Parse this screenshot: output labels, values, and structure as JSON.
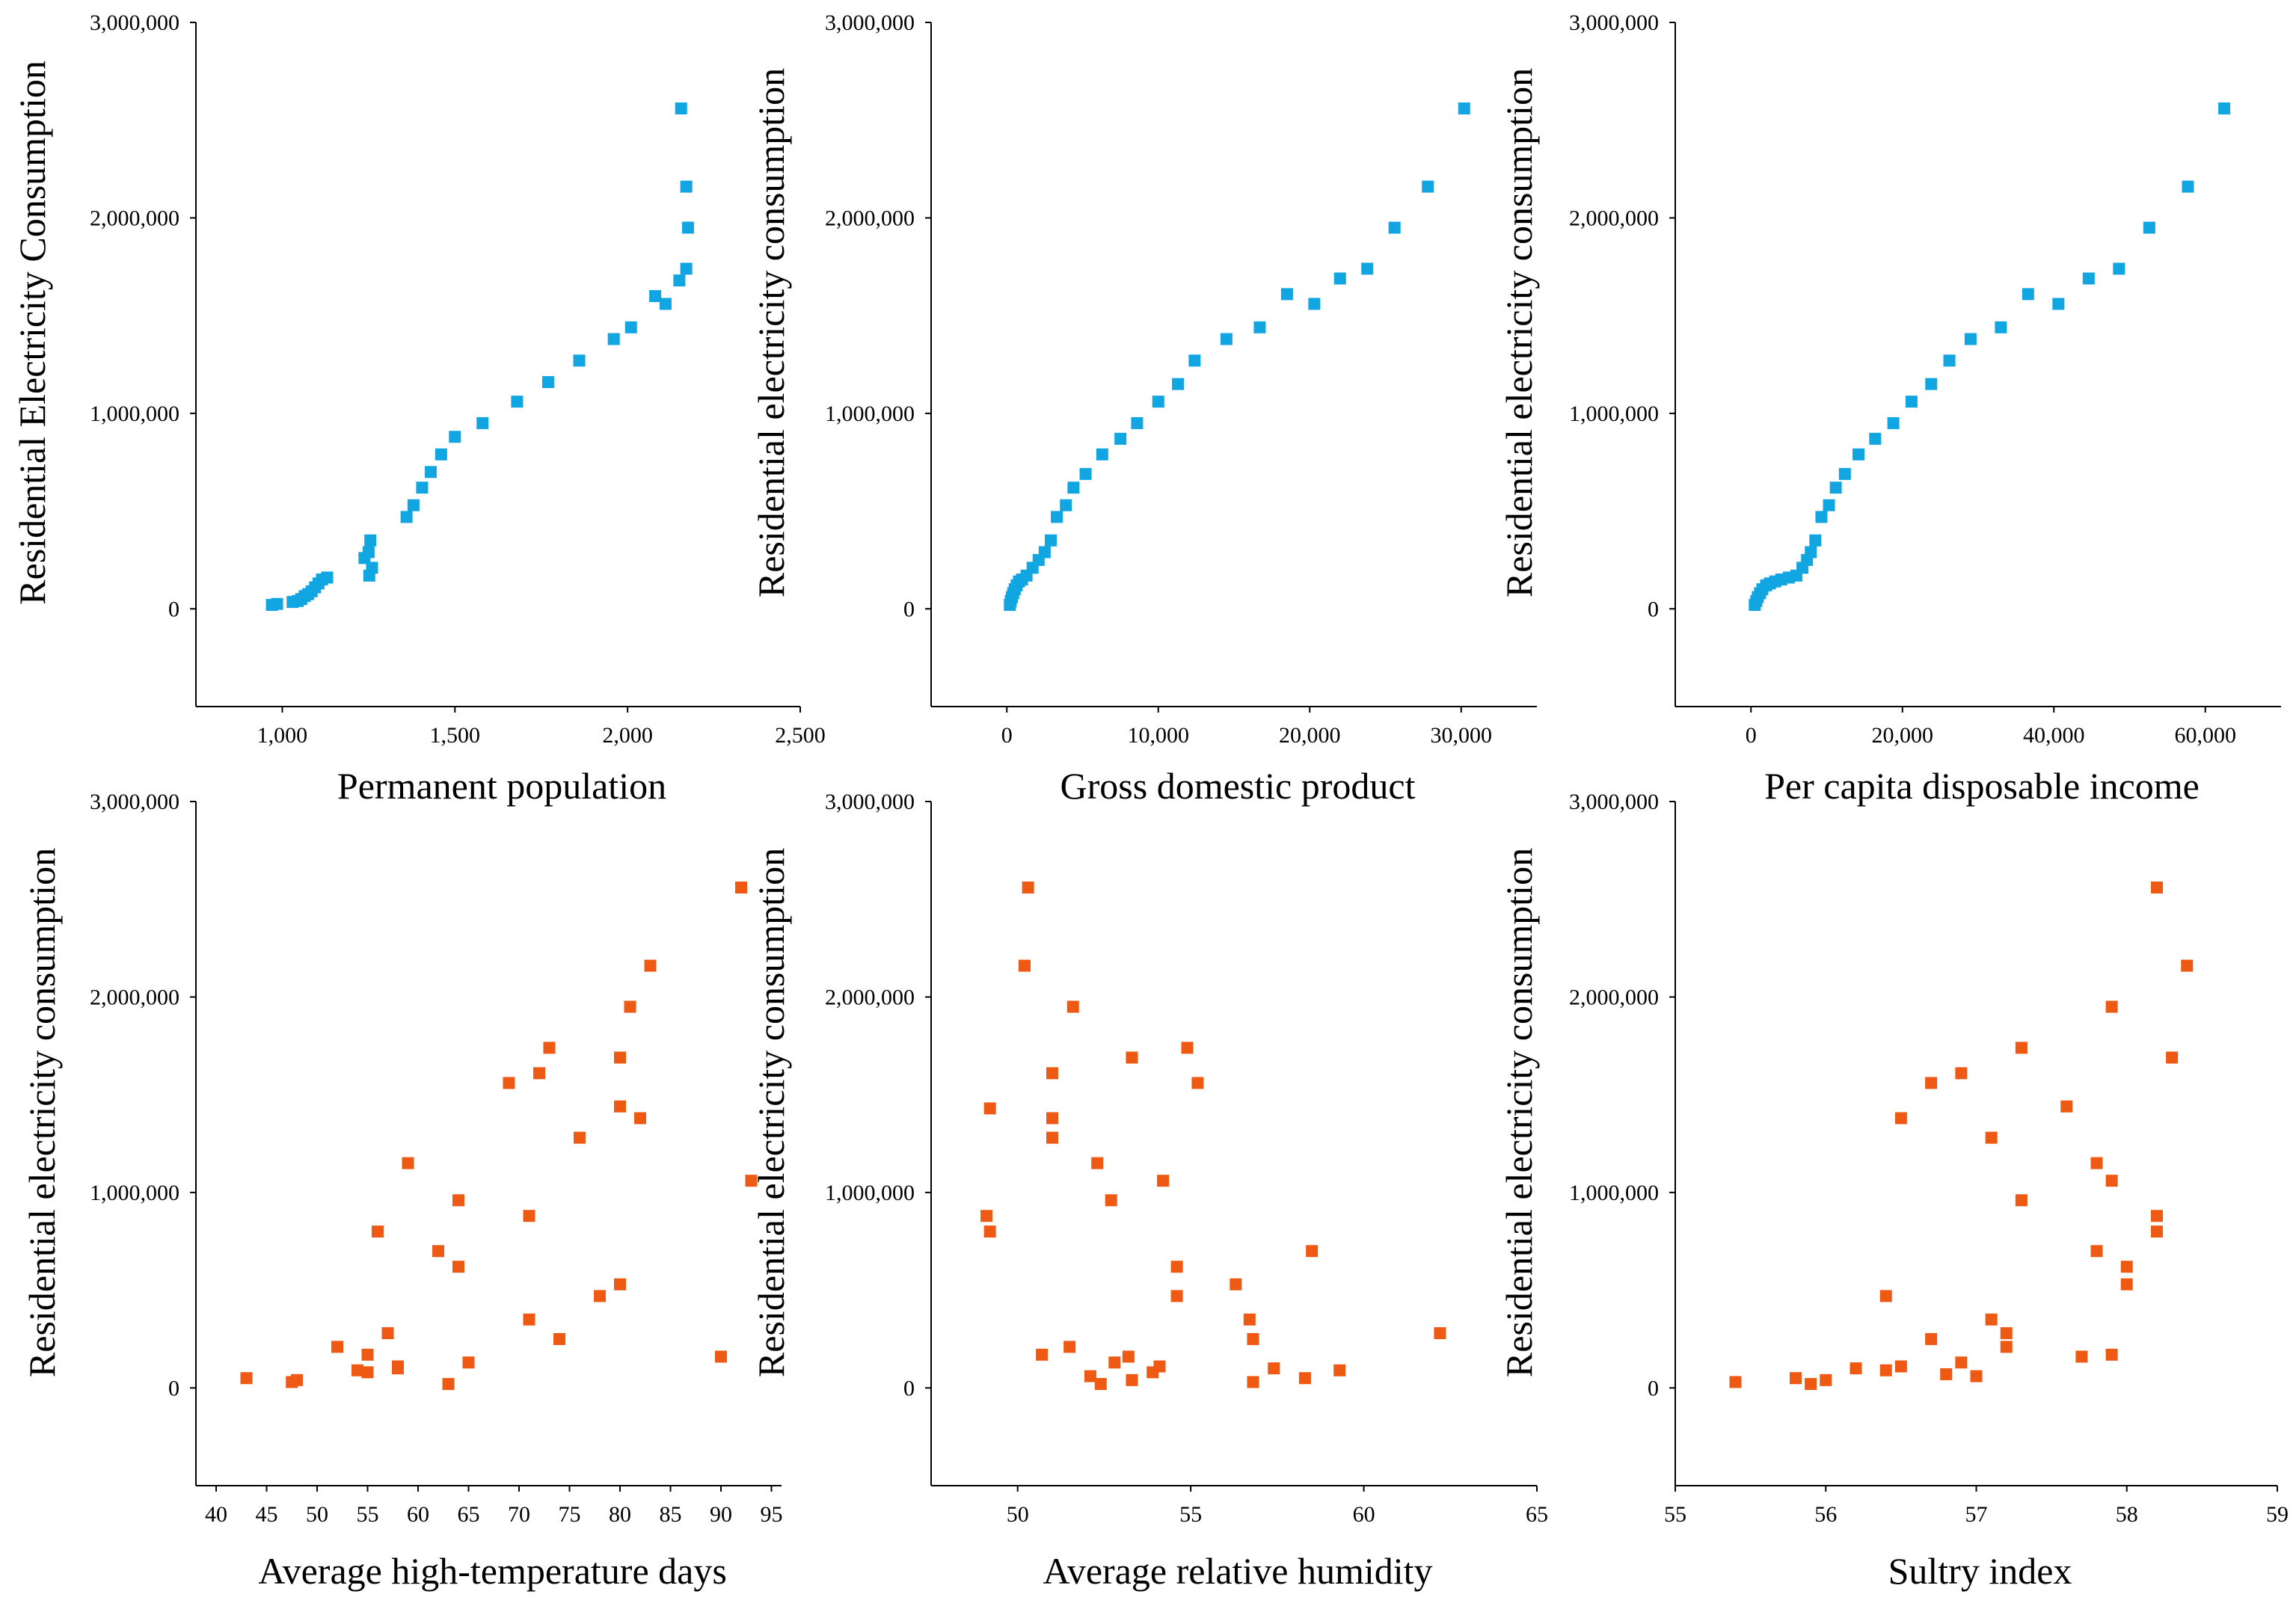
{
  "colors": {
    "blue": "#11A6E2",
    "orange": "#EE5A14",
    "axis": "#000000"
  },
  "chart_data": [
    {
      "type": "scatter",
      "id": "permanent-population",
      "color": "blue",
      "xlabel": "Permanent population",
      "ylabel": "Residential Electricity Consumption",
      "xlim": [
        750,
        2500
      ],
      "ylim": [
        -500000,
        3000000
      ],
      "xticks": [
        1000,
        1500,
        2000,
        2500
      ],
      "xtick_labels": [
        "1,000",
        "1,500",
        "2,000",
        "2,500"
      ],
      "yticks": [
        0,
        1000000,
        2000000,
        3000000
      ],
      "ytick_labels": [
        "0",
        "1,000,000",
        "2,000,000",
        "3,000,000"
      ],
      "points": [
        [
          970,
          20000
        ],
        [
          985,
          25000
        ],
        [
          1030,
          35000
        ],
        [
          1045,
          40000
        ],
        [
          1055,
          50000
        ],
        [
          1065,
          65000
        ],
        [
          1075,
          75000
        ],
        [
          1085,
          90000
        ],
        [
          1095,
          110000
        ],
        [
          1105,
          130000
        ],
        [
          1115,
          150000
        ],
        [
          1130,
          160000
        ],
        [
          1238,
          260000
        ],
        [
          1250,
          290000
        ],
        [
          1255,
          350000
        ],
        [
          1252,
          170000
        ],
        [
          1260,
          210000
        ],
        [
          1360,
          470000
        ],
        [
          1380,
          530000
        ],
        [
          1405,
          620000
        ],
        [
          1430,
          700000
        ],
        [
          1460,
          790000
        ],
        [
          1500,
          880000
        ],
        [
          1580,
          950000
        ],
        [
          1680,
          1060000
        ],
        [
          1770,
          1160000
        ],
        [
          1860,
          1270000
        ],
        [
          1960,
          1380000
        ],
        [
          2010,
          1440000
        ],
        [
          2080,
          1600000
        ],
        [
          2110,
          1560000
        ],
        [
          2150,
          1680000
        ],
        [
          2170,
          1740000
        ],
        [
          2175,
          1950000
        ],
        [
          2170,
          2160000
        ],
        [
          2155,
          2560000
        ]
      ]
    },
    {
      "type": "scatter",
      "id": "gross-domestic-product",
      "color": "blue",
      "xlabel": "Gross domestic product",
      "ylabel": "Residential electricity consumption",
      "xlim": [
        -5000,
        35000
      ],
      "ylim": [
        -500000,
        3000000
      ],
      "xticks": [
        0,
        10000,
        20000,
        30000
      ],
      "xtick_labels": [
        "0",
        "10,000",
        "20,000",
        "30,000"
      ],
      "yticks": [
        0,
        1000000,
        2000000,
        3000000
      ],
      "ytick_labels": [
        "0",
        "1,000,000",
        "2,000,000",
        "3,000,000"
      ],
      "points": [
        [
          200,
          20000
        ],
        [
          260,
          40000
        ],
        [
          330,
          60000
        ],
        [
          420,
          80000
        ],
        [
          520,
          100000
        ],
        [
          650,
          120000
        ],
        [
          800,
          140000
        ],
        [
          1000,
          150000
        ],
        [
          1300,
          170000
        ],
        [
          1700,
          210000
        ],
        [
          2100,
          250000
        ],
        [
          2500,
          290000
        ],
        [
          2900,
          350000
        ],
        [
          3300,
          470000
        ],
        [
          3900,
          530000
        ],
        [
          4400,
          620000
        ],
        [
          5200,
          690000
        ],
        [
          6300,
          790000
        ],
        [
          7500,
          870000
        ],
        [
          8600,
          950000
        ],
        [
          10000,
          1060000
        ],
        [
          11300,
          1150000
        ],
        [
          12400,
          1270000
        ],
        [
          14500,
          1380000
        ],
        [
          16700,
          1440000
        ],
        [
          18500,
          1610000
        ],
        [
          20300,
          1560000
        ],
        [
          22000,
          1690000
        ],
        [
          23800,
          1740000
        ],
        [
          25600,
          1950000
        ],
        [
          27800,
          2160000
        ],
        [
          30200,
          2560000
        ]
      ]
    },
    {
      "type": "scatter",
      "id": "per-capita-disposable-income",
      "color": "blue",
      "xlabel": "Per capita disposable income",
      "ylabel": "Residential electricity consumption",
      "xlim": [
        -10000,
        70000
      ],
      "ylim": [
        -500000,
        3000000
      ],
      "xticks": [
        0,
        20000,
        40000,
        60000
      ],
      "xtick_labels": [
        "0",
        "20,000",
        "40,000",
        "60,000"
      ],
      "yticks": [
        0,
        1000000,
        2000000,
        3000000
      ],
      "ytick_labels": [
        "0",
        "1,000,000",
        "2,000,000",
        "3,000,000"
      ],
      "points": [
        [
          500,
          20000
        ],
        [
          700,
          40000
        ],
        [
          900,
          60000
        ],
        [
          1200,
          80000
        ],
        [
          1500,
          100000
        ],
        [
          2000,
          120000
        ],
        [
          2500,
          130000
        ],
        [
          3200,
          140000
        ],
        [
          4000,
          150000
        ],
        [
          5000,
          160000
        ],
        [
          6000,
          170000
        ],
        [
          6800,
          210000
        ],
        [
          7400,
          250000
        ],
        [
          7900,
          290000
        ],
        [
          8500,
          350000
        ],
        [
          9300,
          470000
        ],
        [
          10300,
          530000
        ],
        [
          11200,
          620000
        ],
        [
          12400,
          690000
        ],
        [
          14200,
          790000
        ],
        [
          16400,
          870000
        ],
        [
          18800,
          950000
        ],
        [
          21200,
          1060000
        ],
        [
          23800,
          1150000
        ],
        [
          26200,
          1270000
        ],
        [
          29000,
          1380000
        ],
        [
          33000,
          1440000
        ],
        [
          36600,
          1610000
        ],
        [
          40600,
          1560000
        ],
        [
          44600,
          1690000
        ],
        [
          48600,
          1740000
        ],
        [
          52600,
          1950000
        ],
        [
          57700,
          2160000
        ],
        [
          62500,
          2560000
        ]
      ]
    },
    {
      "type": "scatter",
      "id": "average-high-temperature-days",
      "color": "orange",
      "xlabel": "Average high-temperature days",
      "ylabel": "Residential electricity consumption",
      "xlim": [
        38,
        96
      ],
      "ylim": [
        -500000,
        3000000
      ],
      "xticks": [
        40,
        45,
        50,
        55,
        60,
        65,
        70,
        75,
        80,
        85,
        90,
        95
      ],
      "xtick_labels": [
        "40",
        "45",
        "50",
        "55",
        "60",
        "65",
        "70",
        "75",
        "80",
        "85",
        "90",
        "95"
      ],
      "yticks": [
        0,
        1000000,
        2000000,
        3000000
      ],
      "ytick_labels": [
        "0",
        "1,000,000",
        "2,000,000",
        "3,000,000"
      ],
      "points": [
        [
          43,
          50000
        ],
        [
          47.5,
          30000
        ],
        [
          48,
          40000
        ],
        [
          52,
          210000
        ],
        [
          54,
          90000
        ],
        [
          55,
          80000
        ],
        [
          55,
          170000
        ],
        [
          56,
          800000
        ],
        [
          57,
          280000
        ],
        [
          58,
          110000
        ],
        [
          58,
          100000
        ],
        [
          59,
          1150000
        ],
        [
          62,
          700000
        ],
        [
          63,
          20000
        ],
        [
          64,
          960000
        ],
        [
          64,
          620000
        ],
        [
          65,
          130000
        ],
        [
          69,
          1560000
        ],
        [
          71,
          880000
        ],
        [
          71,
          350000
        ],
        [
          72,
          1610000
        ],
        [
          73,
          1740000
        ],
        [
          74,
          250000
        ],
        [
          76,
          1280000
        ],
        [
          78,
          470000
        ],
        [
          80,
          530000
        ],
        [
          80,
          1440000
        ],
        [
          80,
          1690000
        ],
        [
          81,
          1950000
        ],
        [
          82,
          1380000
        ],
        [
          83,
          2160000
        ],
        [
          90,
          160000
        ],
        [
          92,
          2560000
        ],
        [
          93,
          1060000
        ]
      ]
    },
    {
      "type": "scatter",
      "id": "average-relative-humidity",
      "color": "orange",
      "xlabel": "Average relative humidity",
      "ylabel": "Residential electricity consumption",
      "xlim": [
        47.5,
        65
      ],
      "ylim": [
        -500000,
        3000000
      ],
      "xticks": [
        50,
        55,
        60,
        65
      ],
      "xtick_labels": [
        "50",
        "55",
        "60",
        "65"
      ],
      "yticks": [
        0,
        1000000,
        2000000,
        3000000
      ],
      "ytick_labels": [
        "0",
        "1,000,000",
        "2,000,000",
        "3,000,000"
      ],
      "points": [
        [
          49.1,
          880000
        ],
        [
          49.2,
          800000
        ],
        [
          49.2,
          1430000
        ],
        [
          50.2,
          2160000
        ],
        [
          50.3,
          2560000
        ],
        [
          50.7,
          170000
        ],
        [
          51,
          1610000
        ],
        [
          51,
          1380000
        ],
        [
          51,
          1280000
        ],
        [
          51.5,
          210000
        ],
        [
          51.6,
          1950000
        ],
        [
          52.1,
          60000
        ],
        [
          52.3,
          1150000
        ],
        [
          52.4,
          20000
        ],
        [
          52.7,
          960000
        ],
        [
          52.8,
          130000
        ],
        [
          53.2,
          160000
        ],
        [
          53.3,
          40000
        ],
        [
          53.3,
          1690000
        ],
        [
          53.9,
          80000
        ],
        [
          54.1,
          110000
        ],
        [
          54.2,
          1060000
        ],
        [
          54.6,
          620000
        ],
        [
          54.6,
          470000
        ],
        [
          54.9,
          1740000
        ],
        [
          55.2,
          1560000
        ],
        [
          56.3,
          530000
        ],
        [
          56.7,
          350000
        ],
        [
          56.8,
          250000
        ],
        [
          56.8,
          30000
        ],
        [
          57.4,
          100000
        ],
        [
          58.3,
          50000
        ],
        [
          58.5,
          700000
        ],
        [
          59.3,
          90000
        ],
        [
          62.2,
          280000
        ]
      ]
    },
    {
      "type": "scatter",
      "id": "sultry-index",
      "color": "orange",
      "xlabel": "Sultry index",
      "ylabel": "Residential electricity consumption",
      "xlim": [
        55,
        59
      ],
      "ylim": [
        -500000,
        3000000
      ],
      "xticks": [
        55,
        56,
        57,
        58,
        59
      ],
      "xtick_labels": [
        "55",
        "56",
        "57",
        "58",
        "59"
      ],
      "yticks": [
        0,
        1000000,
        2000000,
        3000000
      ],
      "ytick_labels": [
        "0",
        "1,000,000",
        "2,000,000",
        "3,000,000"
      ],
      "points": [
        [
          55.4,
          30000
        ],
        [
          55.8,
          50000
        ],
        [
          55.9,
          20000
        ],
        [
          56,
          40000
        ],
        [
          56.2,
          100000
        ],
        [
          56.4,
          90000
        ],
        [
          56.4,
          470000
        ],
        [
          56.5,
          110000
        ],
        [
          56.5,
          1380000
        ],
        [
          56.7,
          250000
        ],
        [
          56.7,
          1560000
        ],
        [
          56.8,
          70000
        ],
        [
          56.9,
          130000
        ],
        [
          56.9,
          1610000
        ],
        [
          57,
          60000
        ],
        [
          57.1,
          350000
        ],
        [
          57.1,
          1280000
        ],
        [
          57.2,
          280000
        ],
        [
          57.2,
          210000
        ],
        [
          57.3,
          960000
        ],
        [
          57.3,
          1740000
        ],
        [
          57.6,
          1440000
        ],
        [
          57.7,
          160000
        ],
        [
          57.8,
          1150000
        ],
        [
          57.8,
          700000
        ],
        [
          57.9,
          1060000
        ],
        [
          57.9,
          1950000
        ],
        [
          57.9,
          170000
        ],
        [
          58,
          620000
        ],
        [
          58,
          530000
        ],
        [
          58.2,
          880000
        ],
        [
          58.2,
          800000
        ],
        [
          58.2,
          2560000
        ],
        [
          58.3,
          1690000
        ],
        [
          58.4,
          2160000
        ]
      ]
    }
  ]
}
